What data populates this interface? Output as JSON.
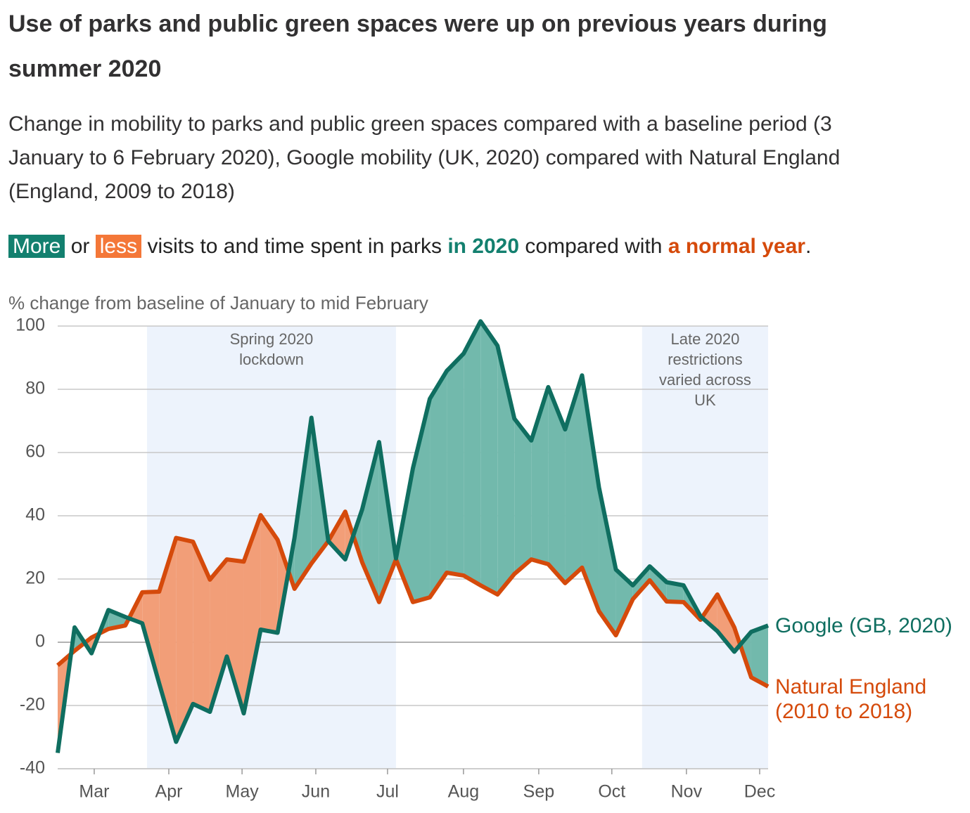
{
  "chart_data": {
    "type": "line",
    "title": "Use of parks and public green spaces were up on previous years during summer 2020",
    "subtitle": "Change in mobility to parks and public green spaces compared with a baseline period (3 January to 6 February 2020), Google mobility (UK, 2020) compared with Natural England (England, 2009 to 2018)",
    "key_text": [
      "More",
      "or",
      "less",
      "visits to and time spent in parks",
      "in 2020",
      "compared with",
      "a normal year",
      "."
    ],
    "y_label": "% change from baseline of January to mid February",
    "xlim": [
      0,
      42
    ],
    "xticks": [
      {
        "value": 2.16,
        "label": "Mar"
      },
      {
        "value": 6.57,
        "label": "Apr"
      },
      {
        "value": 10.9,
        "label": "May"
      },
      {
        "value": 15.26,
        "label": "Jun"
      },
      {
        "value": 19.5,
        "label": "Jul"
      },
      {
        "value": 23.99,
        "label": "Aug"
      },
      {
        "value": 28.44,
        "label": "Sep"
      },
      {
        "value": 32.76,
        "label": "Oct"
      },
      {
        "value": 37.17,
        "label": "Nov"
      },
      {
        "value": 41.5,
        "label": "Dec"
      }
    ],
    "ylim": [
      -40,
      100
    ],
    "yticks": [
      -40,
      -20,
      0,
      20,
      40,
      60,
      80,
      100
    ],
    "grid": true,
    "above_color": "#72b9ac",
    "below_color": "#f29e78",
    "annotations": [
      {
        "text": "Spring 2020 lockdown",
        "range": [
          5.28,
          20
        ]
      },
      {
        "text": "Late 2020 restrictions varied across UK",
        "range": [
          34.55,
          42
        ]
      }
    ],
    "shade_color": "#edf3fc",
    "series": [
      {
        "name": "Google (GB, 2020)",
        "color": "#0f6e60",
        "values": [
          -35,
          4.7,
          -3.5,
          10.2,
          8,
          6,
          -13,
          -31.5,
          -19.5,
          -22,
          -4.5,
          -22.5,
          4,
          3,
          33,
          71,
          32,
          26.2,
          42,
          63.3,
          26.5,
          55,
          77,
          85.8,
          91.3,
          101.5,
          93.8,
          70.7,
          63.8,
          80.7,
          67.3,
          84.4,
          49,
          23,
          18,
          24,
          19,
          18,
          8.2,
          3.5,
          -3,
          3.3,
          5.3
        ]
      },
      {
        "name": "Natural England (2010 to 2018)",
        "color": "#d54a0b",
        "values": [
          -7.3,
          -2.7,
          1.5,
          4.2,
          5.3,
          15.8,
          16,
          33,
          31.8,
          19.8,
          26.2,
          25.5,
          40.2,
          32.4,
          16.9,
          24.9,
          32,
          41.3,
          25.3,
          12.7,
          26.2,
          12.7,
          14.2,
          22,
          21.1,
          18,
          15.1,
          21.6,
          26.2,
          24.7,
          18.7,
          23.6,
          9.8,
          2.2,
          13.6,
          19.6,
          12.9,
          12.7,
          7.1,
          15.1,
          4.7,
          -11.1,
          -14
        ]
      }
    ]
  }
}
